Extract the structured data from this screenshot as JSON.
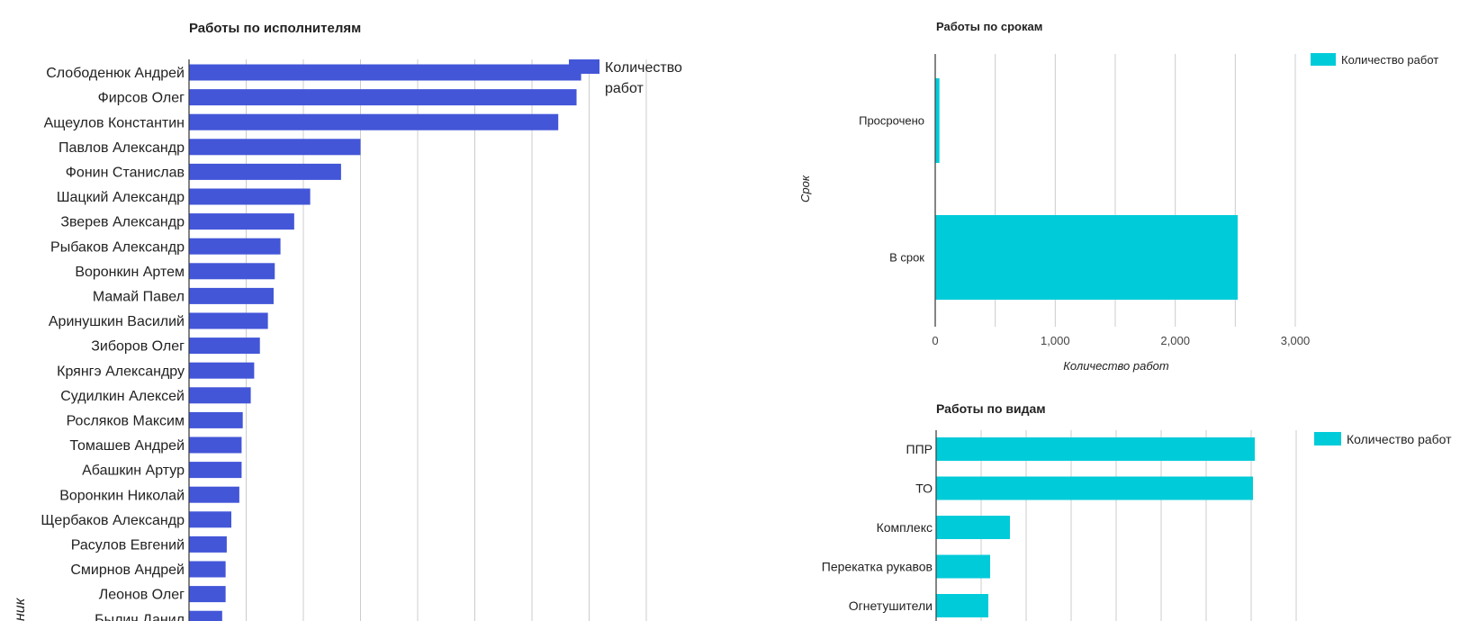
{
  "colors": {
    "executors": "#4356d8",
    "cyan": "#00cbd9",
    "grid": "#cccccc",
    "axis": "#333333"
  },
  "chart_data": [
    {
      "type": "bar",
      "orientation": "horizontal",
      "title": "Работы по исполнителям",
      "ylabel": "Исполнитель",
      "ylabel_visible": "ник",
      "legend": [
        "Количество",
        "работ"
      ],
      "legend_position": "top-right",
      "categories": [
        "Слободенюк Андрей",
        "Фирсов Олег",
        "Ащеулов Константин",
        "Павлов Александр",
        "Фонин Станислав",
        "Шацкий Александр",
        "Зверев Александр",
        "Рыбаков Александр",
        "Воронкин Артем",
        "Мамай Павел",
        "Аринушкин Василий",
        "Зиборов Олег",
        "Крянгэ Александру",
        "Судилкин Алексей",
        "Росляков Максим",
        "Томашев Андрей",
        "Абашкин Артур",
        "Воронкин Николай",
        "Щербаков Александр",
        "Расулов Евгений",
        "Смирнов Андрей",
        "Леонов Олег",
        "Былич Данил"
      ],
      "values": [
        343,
        339,
        323,
        150,
        133,
        106,
        92,
        80,
        75,
        74,
        69,
        62,
        57,
        54,
        47,
        46,
        46,
        44,
        37,
        33,
        32,
        32,
        29
      ],
      "xlim": [
        0,
        400
      ],
      "grid": true
    },
    {
      "type": "bar",
      "orientation": "horizontal",
      "title": "Работы по срокам",
      "xlabel": "Количество работ",
      "ylabel": "Срок",
      "legend": "Количество работ",
      "legend_position": "top-right",
      "categories": [
        "Просрочено",
        "В срок"
      ],
      "values": [
        35,
        2520
      ],
      "xlim": [
        0,
        3000
      ],
      "xticks": [
        "0",
        "1,000",
        "2,000",
        "3,000"
      ],
      "grid": true
    },
    {
      "type": "bar",
      "orientation": "horizontal",
      "title": "Работы по видам",
      "legend": "Количество работ",
      "legend_position": "top-right",
      "categories": [
        "ППР",
        "ТО",
        "Комплекс",
        "Перекатка рукавов",
        "Огнетушители"
      ],
      "values": [
        1770,
        1760,
        410,
        300,
        290
      ],
      "xlim": [
        0,
        2000
      ],
      "grid": true
    }
  ]
}
